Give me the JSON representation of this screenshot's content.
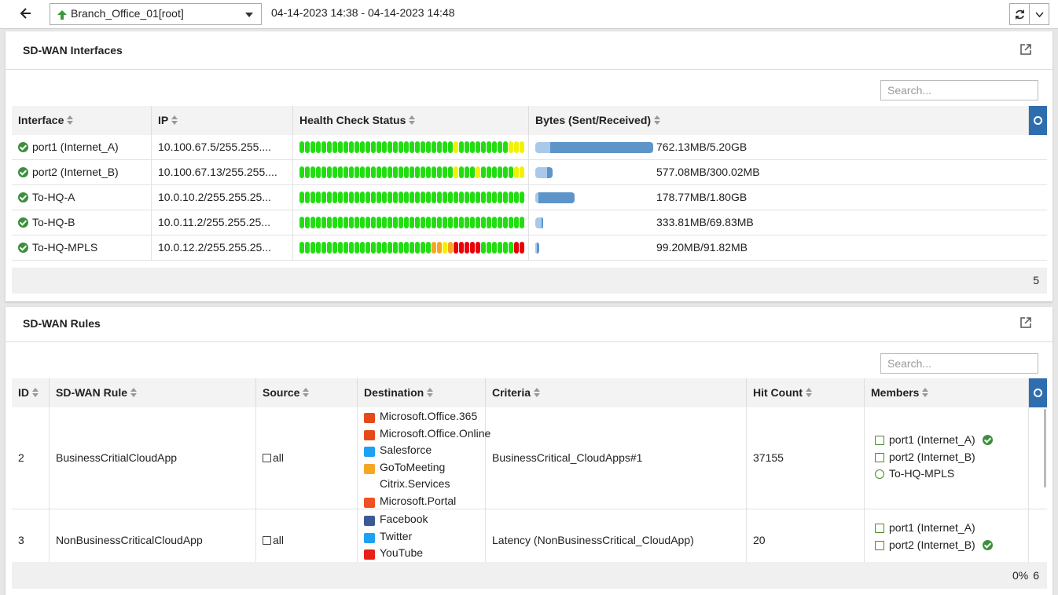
{
  "toolbar": {
    "device": "Branch_Office_01[root]",
    "time_range": "04-14-2023 14:38 - 04-14-2023 14:48"
  },
  "interfaces": {
    "title": "SD-WAN Interfaces",
    "search_placeholder": "Search...",
    "columns": [
      "Interface",
      "IP",
      "Health Check Status",
      "Bytes (Sent/Received)"
    ],
    "rows": [
      {
        "interface": "port1 (Internet_A)",
        "ip": "10.100.67.5/255.255....",
        "health": "GGGGGGGGGGGGGGGGGGGGGGGGGGGGYGGGGGGGGGYYY",
        "sent": 762.13,
        "received": 5200,
        "bytes_label": "762.13MB/5.20GB"
      },
      {
        "interface": "port2 (Internet_B)",
        "ip": "10.100.67.13/255.255....",
        "health": "GGGGGGGGGGGGGGGGGGGGGGGGGGGGYGGGYGGGGGGYY",
        "sent": 577.08,
        "received": 300.02,
        "bytes_label": "577.08MB/300.02MB"
      },
      {
        "interface": "To-HQ-A",
        "ip": "10.0.10.2/255.255.25...",
        "health": "GGGGGGGGGGGGGGGGGGGGGGGGGGGGGGGGGGGGGGGGG",
        "sent": 178.77,
        "received": 1800,
        "bytes_label": "178.77MB/1.80GB"
      },
      {
        "interface": "To-HQ-B",
        "ip": "10.0.11.2/255.255.25...",
        "health": "GGGGGGGGGGGGGGGGGGGGGGGGGGGGGGGGGGGGGGGGG",
        "sent": 333.81,
        "received": 69.83,
        "bytes_label": "333.81MB/69.83MB"
      },
      {
        "interface": "To-HQ-MPLS",
        "ip": "10.0.12.2/255.255.25...",
        "health": "GGGGGGGGGGGGGGGGGGGGGGGGOOYORRRRRGGGGGGRR",
        "sent": 99.2,
        "received": 91.82,
        "bytes_label": "99.20MB/91.82MB"
      }
    ],
    "count": "5"
  },
  "rules": {
    "title": "SD-WAN Rules",
    "search_placeholder": "Search...",
    "columns": [
      "ID",
      "SD-WAN Rule",
      "Source",
      "Destination",
      "Criteria",
      "Hit Count",
      "Members"
    ],
    "rows": [
      {
        "id": "2",
        "rule": "BusinessCritialCloudApp",
        "source": "all",
        "destination": [
          "Microsoft.Office.365",
          "Microsoft.Office.Online",
          "Salesforce",
          "GoToMeeting",
          "Citrix.Services",
          "Microsoft.Portal"
        ],
        "criteria": "BusinessCritical_CloudApps#1",
        "hit_count": "37155",
        "members": [
          {
            "name": "port1 (Internet_A)",
            "selected": true
          },
          {
            "name": "port2 (Internet_B)",
            "selected": false
          },
          {
            "name": "To-HQ-MPLS",
            "selected": false
          }
        ]
      },
      {
        "id": "3",
        "rule": "NonBusinessCriticalCloudApp",
        "source": "all",
        "destination": [
          "Facebook",
          "Twitter",
          "YouTube"
        ],
        "criteria": "Latency (NonBusinessCritical_CloudApp)",
        "hit_count": "20",
        "members": [
          {
            "name": "port1 (Internet_A)",
            "selected": false
          },
          {
            "name": "port2 (Internet_B)",
            "selected": true
          }
        ]
      }
    ],
    "progress": "0%",
    "count": "6"
  }
}
